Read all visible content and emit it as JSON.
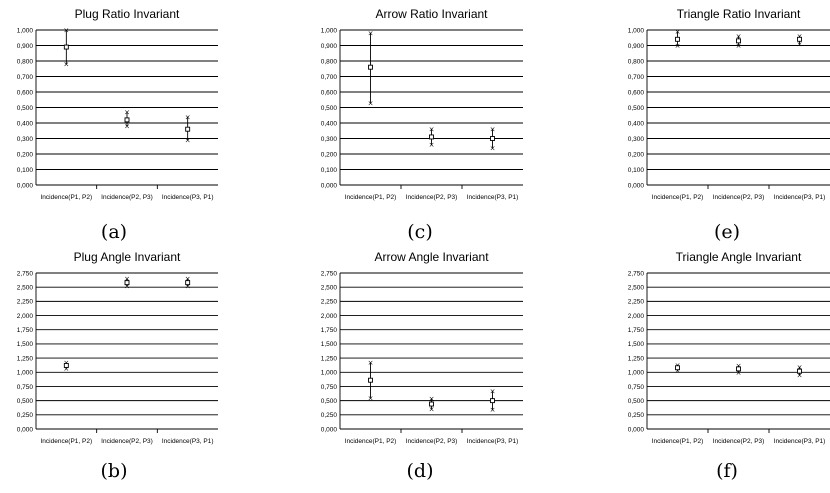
{
  "chart_data": [
    {
      "type": "scatter",
      "title": "Plug Ratio Invariant",
      "caption": "(a)",
      "categories": [
        "Incidence(P1, P2)",
        "Incidence(P2, P3)",
        "Incidence(P3, P1)"
      ],
      "yticks": [
        "0,000",
        "0,100",
        "0,200",
        "0,300",
        "0,400",
        "0,500",
        "0,600",
        "0,700",
        "0,800",
        "0,900",
        "1,000"
      ],
      "ylim": [
        0,
        1.0
      ],
      "points": [
        {
          "mean": 0.89,
          "low": 0.78,
          "high": 1.0
        },
        {
          "mean": 0.42,
          "low": 0.38,
          "high": 0.47
        },
        {
          "mean": 0.36,
          "low": 0.29,
          "high": 0.44
        }
      ]
    },
    {
      "type": "scatter",
      "title": "Plug Angle Invariant",
      "caption": "(b)",
      "categories": [
        "Incidence(P1, P2)",
        "Incidence(P2, P3)",
        "Incidence(P3, P1)"
      ],
      "yticks": [
        "0,000",
        "0,250",
        "0,500",
        "0,750",
        "1,000",
        "1,250",
        "1,500",
        "1,750",
        "2,000",
        "2,250",
        "2,500",
        "2,750"
      ],
      "ylim": [
        0,
        2.75
      ],
      "points": [
        {
          "mean": 1.12,
          "low": 1.07,
          "high": 1.17
        },
        {
          "mean": 2.58,
          "low": 2.52,
          "high": 2.65
        },
        {
          "mean": 2.58,
          "low": 2.52,
          "high": 2.65
        }
      ]
    },
    {
      "type": "scatter",
      "title": "Arrow Ratio Invariant",
      "caption": "(c)",
      "categories": [
        "Incidence(P1, P2)",
        "Incidence(P2, P3)",
        "Incidence(P3, P1)"
      ],
      "yticks": [
        "0,000",
        "0,100",
        "0,200",
        "0,300",
        "0,400",
        "0,500",
        "0,600",
        "0,700",
        "0,800",
        "0,900",
        "1,000"
      ],
      "ylim": [
        0,
        1.0
      ],
      "points": [
        {
          "mean": 0.76,
          "low": 0.53,
          "high": 0.98
        },
        {
          "mean": 0.31,
          "low": 0.26,
          "high": 0.36
        },
        {
          "mean": 0.3,
          "low": 0.24,
          "high": 0.36
        }
      ]
    },
    {
      "type": "scatter",
      "title": "Arrow Angle Invariant",
      "caption": "(d)",
      "categories": [
        "Incidence(P1, P2)",
        "Incidence(P2, P3)",
        "Incidence(P3, P1)"
      ],
      "yticks": [
        "0,000",
        "0,250",
        "0,500",
        "0,750",
        "1,000",
        "1,250",
        "1,500",
        "1,750",
        "2,000",
        "2,250",
        "2,500",
        "2,750"
      ],
      "ylim": [
        0,
        2.75
      ],
      "points": [
        {
          "mean": 0.86,
          "low": 0.55,
          "high": 1.17
        },
        {
          "mean": 0.44,
          "low": 0.35,
          "high": 0.54
        },
        {
          "mean": 0.5,
          "low": 0.34,
          "high": 0.67
        }
      ]
    },
    {
      "type": "scatter",
      "title": "Triangle Ratio Invariant",
      "caption": "(e)",
      "categories": [
        "Incidence(P1, P2)",
        "Incidence(P2, P3)",
        "Incidence(P3, P1)"
      ],
      "yticks": [
        "0,000",
        "0,100",
        "0,200",
        "0,300",
        "0,400",
        "0,500",
        "0,600",
        "0,700",
        "0,800",
        "0,900",
        "1,000"
      ],
      "ylim": [
        0,
        1.0
      ],
      "points": [
        {
          "mean": 0.94,
          "low": 0.9,
          "high": 0.99
        },
        {
          "mean": 0.93,
          "low": 0.9,
          "high": 0.96
        },
        {
          "mean": 0.94,
          "low": 0.91,
          "high": 0.96
        }
      ]
    },
    {
      "type": "scatter",
      "title": "Triangle Angle Invariant",
      "caption": "(f)",
      "categories": [
        "Incidence(P1, P2)",
        "Incidence(P2, P3)",
        "Incidence(P3, P1)"
      ],
      "yticks": [
        "0,000",
        "0,250",
        "0,500",
        "0,750",
        "1,000",
        "1,250",
        "1,500",
        "1,750",
        "2,000",
        "2,250",
        "2,500",
        "2,750"
      ],
      "ylim": [
        0,
        2.75
      ],
      "points": [
        {
          "mean": 1.08,
          "low": 1.03,
          "high": 1.13
        },
        {
          "mean": 1.06,
          "low": 1.0,
          "high": 1.12
        },
        {
          "mean": 1.02,
          "low": 0.95,
          "high": 1.09
        }
      ]
    }
  ]
}
